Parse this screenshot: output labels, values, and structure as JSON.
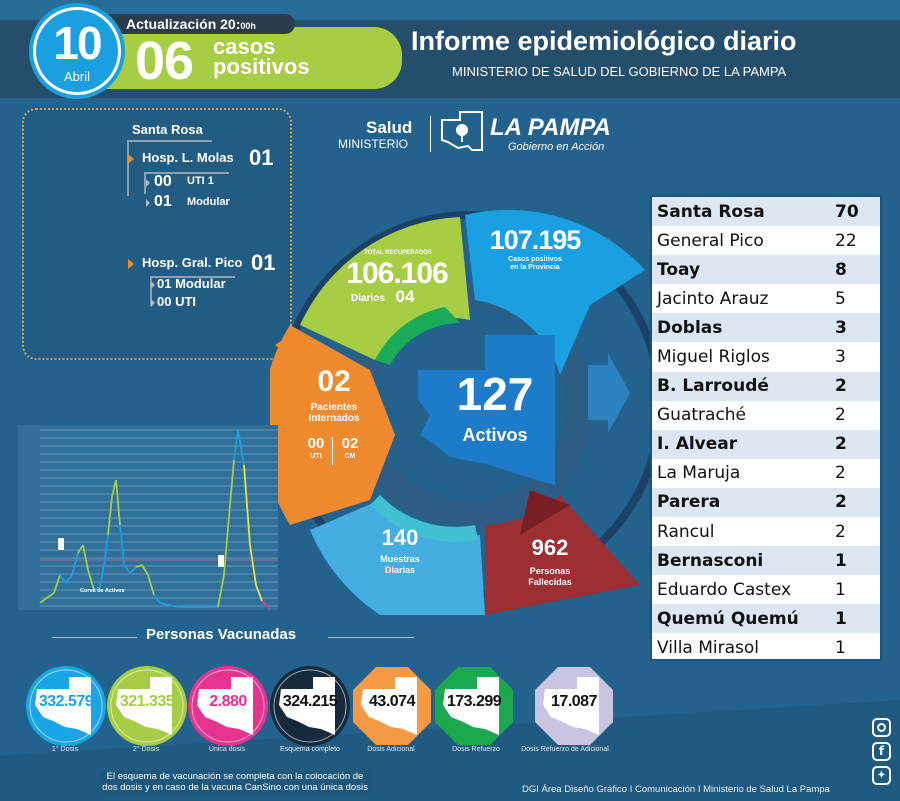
{
  "header": {
    "date_day": "10",
    "date_month": "Abril",
    "update_label": "Actualización 20:",
    "update_suffix": "00h",
    "daily_cases": "06",
    "daily_cases_label_1": "casos",
    "daily_cases_label_2": "positivos",
    "title": "Informe epidemiológico diario",
    "subtitle": "MINISTERIO DE SALUD DEL GOBIERNO DE LA PAMPA"
  },
  "hospitals": {
    "city": "Santa Rosa",
    "h1": {
      "name": "Hosp. L. Molas",
      "total": "01",
      "sub": [
        {
          "value": "00",
          "label": "UTI 1"
        },
        {
          "value": "01",
          "label": "Modular"
        }
      ]
    },
    "h2": {
      "name": "Hosp. Gral. Pico",
      "total": "01",
      "sub": [
        {
          "value": "01",
          "label": "Modular"
        },
        {
          "value": "00",
          "label": "UTI"
        }
      ]
    }
  },
  "logo": {
    "salud": "Salud",
    "ministerio": "MINISTERIO",
    "province": "LA PAMPA",
    "tagline": "Gobierno en Acción"
  },
  "donut": {
    "recovered_label": "TOTAL RECUPERADOS",
    "recovered_total": "106.106",
    "recovered_daily_label": "Diarios",
    "recovered_daily": "04",
    "positive_total": "107.195",
    "positive_label_1": "Casos positivos",
    "positive_label_2": "en la Provincia",
    "hospitalized": "02",
    "hospitalized_label_1": "Pacientes",
    "hospitalized_label_2": "Internados",
    "uti_value": "00",
    "uti_label": "UTI",
    "cm_value": "02",
    "cm_label": "CM",
    "active": "127",
    "active_label": "Activos",
    "samples": "140",
    "samples_label_1": "Muestras",
    "samples_label_2": "Diarias",
    "deaths": "962",
    "deaths_label_1": "Personas",
    "deaths_label_2": "Fallecidas"
  },
  "localities": [
    {
      "name": "Santa Rosa",
      "value": "70"
    },
    {
      "name": "General Pico",
      "value": "22"
    },
    {
      "name": "Toay",
      "value": "8"
    },
    {
      "name": "Jacinto Arauz",
      "value": "5"
    },
    {
      "name": "Doblas",
      "value": "3"
    },
    {
      "name": "Miguel Riglos",
      "value": "3"
    },
    {
      "name": "B.  Larroudé",
      "value": "2"
    },
    {
      "name": "Guatraché",
      "value": "2"
    },
    {
      "name": "I. Alvear",
      "value": "2"
    },
    {
      "name": "La Maruja",
      "value": "2"
    },
    {
      "name": "Parera",
      "value": "2"
    },
    {
      "name": "Rancul",
      "value": "2"
    },
    {
      "name": "Bernasconi",
      "value": "1"
    },
    {
      "name": "Eduardo Castex",
      "value": "1"
    },
    {
      "name": "Quemú Quemú",
      "value": "1"
    },
    {
      "name": "Villa Mirasol",
      "value": "1"
    }
  ],
  "chart": {
    "label": "Curva de Activos"
  },
  "vaccination": {
    "title": "Personas Vacunadas",
    "items": [
      {
        "value": "332.579",
        "label": "1° Dosis",
        "color": "#1aa6e6"
      },
      {
        "value": "321.335",
        "label": "2° Dosis",
        "color": "#a7cd45"
      },
      {
        "value": "2.880",
        "label": "Única dosis",
        "color": "#e5338f"
      },
      {
        "value": "324.215",
        "label": "Esquema completo",
        "color": "#152a3d"
      },
      {
        "value": "43.074",
        "label": "Dosis Adicional",
        "color": "#f49a44"
      },
      {
        "value": "173.299",
        "label": "Dosis Refuerzo",
        "color": "#1ba84f"
      },
      {
        "value": "17.087",
        "label": "Dosis Refuerzo de Adicional",
        "color": "#c8c4e2"
      }
    ],
    "note_1": "El esquema de vacunación se completa con la colocación de",
    "note_2": "dos dosis y en caso de la vacuna CanSino con una única dosis"
  },
  "footer": {
    "credits": "DGI Área Diseño Gráfico  I Comunicación I Ministerio de Salud La Pampa",
    "social": [
      "instagram-icon",
      "facebook-icon",
      "twitter-icon"
    ]
  },
  "colors": {
    "background": "#22628c",
    "green": "#a7cd45",
    "blue": "#1aa0e0",
    "orange": "#f08a2e",
    "red": "#9b2f33"
  }
}
